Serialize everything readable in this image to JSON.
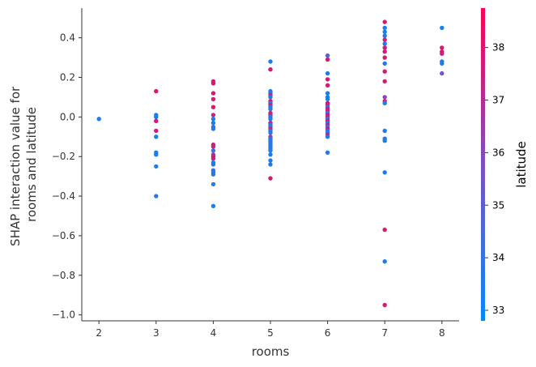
{
  "chart_data": {
    "type": "scatter",
    "title": "",
    "xlabel": "rooms",
    "ylabel_lines": [
      "SHAP interaction value for",
      "rooms and latitude"
    ],
    "xlim": [
      1.7,
      8.3
    ],
    "ylim": [
      -1.03,
      0.55
    ],
    "xticks": [
      2,
      3,
      4,
      5,
      6,
      7,
      8
    ],
    "xtick_labels": [
      "2",
      "3",
      "4",
      "5",
      "6",
      "7",
      "8"
    ],
    "yticks": [
      0.4,
      0.2,
      0.0,
      -0.2,
      -0.4,
      -0.6,
      -0.8,
      -1.0
    ],
    "ytick_labels": [
      "0.4",
      "0.2",
      "0.0",
      "−0.2",
      "−0.4",
      "−0.6",
      "−0.8",
      "−1.0"
    ],
    "grid": false,
    "colorbar": {
      "label": "latitude",
      "range": [
        32.8,
        38.75
      ],
      "ticks": [
        33,
        34,
        35,
        36,
        37,
        38
      ],
      "tick_labels": [
        "33",
        "34",
        "35",
        "36",
        "37",
        "38"
      ],
      "colors": [
        "#008afb",
        "#7d4fc0",
        "#ff0052"
      ]
    },
    "points": [
      [
        2,
        -0.01,
        33.5
      ],
      [
        3,
        0.13,
        38.0
      ],
      [
        3,
        0.01,
        33.5
      ],
      [
        3,
        0.0,
        33.3
      ],
      [
        3,
        -0.02,
        37.9
      ],
      [
        3,
        -0.07,
        37.8
      ],
      [
        3,
        -0.1,
        33.3
      ],
      [
        3,
        -0.18,
        33.4
      ],
      [
        3,
        -0.19,
        33.7
      ],
      [
        3,
        -0.25,
        33.6
      ],
      [
        3,
        -0.4,
        34.1
      ],
      [
        4,
        0.18,
        37.8
      ],
      [
        4,
        0.17,
        37.9
      ],
      [
        4,
        0.12,
        38.0
      ],
      [
        4,
        0.09,
        37.7
      ],
      [
        4,
        0.05,
        37.9
      ],
      [
        4,
        0.01,
        37.6
      ],
      [
        4,
        -0.01,
        33.4
      ],
      [
        4,
        -0.03,
        33.5
      ],
      [
        4,
        -0.05,
        34.0
      ],
      [
        4,
        -0.06,
        33.6
      ],
      [
        4,
        -0.14,
        37.8
      ],
      [
        4,
        -0.15,
        37.5
      ],
      [
        4,
        -0.17,
        34.0
      ],
      [
        4,
        -0.19,
        36.5
      ],
      [
        4,
        -0.2,
        37.8
      ],
      [
        4,
        -0.21,
        37.7
      ],
      [
        4,
        -0.23,
        33.5
      ],
      [
        4,
        -0.24,
        33.7
      ],
      [
        4,
        -0.27,
        34.3
      ],
      [
        4,
        -0.28,
        33.5
      ],
      [
        4,
        -0.29,
        33.8
      ],
      [
        4,
        -0.34,
        33.6
      ],
      [
        4,
        -0.45,
        33.4
      ],
      [
        5,
        0.28,
        33.3
      ],
      [
        5,
        0.24,
        37.8
      ],
      [
        5,
        0.13,
        33.4
      ],
      [
        5,
        0.12,
        33.7
      ],
      [
        5,
        0.11,
        37.7
      ],
      [
        5,
        0.1,
        33.5
      ],
      [
        5,
        0.08,
        38.0
      ],
      [
        5,
        0.07,
        33.6
      ],
      [
        5,
        0.06,
        37.9
      ],
      [
        5,
        0.05,
        33.5
      ],
      [
        5,
        0.04,
        33.8
      ],
      [
        5,
        0.02,
        37.8
      ],
      [
        5,
        0.01,
        37.6
      ],
      [
        5,
        0.0,
        33.4
      ],
      [
        5,
        -0.01,
        33.6
      ],
      [
        5,
        -0.03,
        37.7
      ],
      [
        5,
        -0.04,
        33.9
      ],
      [
        5,
        -0.05,
        33.5
      ],
      [
        5,
        -0.06,
        37.9
      ],
      [
        5,
        -0.07,
        34.0
      ],
      [
        5,
        -0.08,
        33.5
      ],
      [
        5,
        -0.1,
        36.8
      ],
      [
        5,
        -0.11,
        33.6
      ],
      [
        5,
        -0.12,
        33.4
      ],
      [
        5,
        -0.13,
        33.7
      ],
      [
        5,
        -0.14,
        33.5
      ],
      [
        5,
        -0.15,
        34.1
      ],
      [
        5,
        -0.16,
        33.4
      ],
      [
        5,
        -0.17,
        33.6
      ],
      [
        5,
        -0.19,
        33.5
      ],
      [
        5,
        -0.22,
        33.5
      ],
      [
        5,
        -0.24,
        33.7
      ],
      [
        5,
        -0.31,
        37.9
      ],
      [
        6,
        0.31,
        34.8
      ],
      [
        6,
        0.29,
        37.8
      ],
      [
        6,
        0.22,
        33.5
      ],
      [
        6,
        0.19,
        37.9
      ],
      [
        6,
        0.16,
        37.7
      ],
      [
        6,
        0.12,
        33.6
      ],
      [
        6,
        0.1,
        33.5
      ],
      [
        6,
        0.09,
        33.4
      ],
      [
        6,
        0.07,
        37.8
      ],
      [
        6,
        0.06,
        37.6
      ],
      [
        6,
        0.05,
        33.7
      ],
      [
        6,
        0.04,
        37.9
      ],
      [
        6,
        0.03,
        37.5
      ],
      [
        6,
        0.02,
        33.5
      ],
      [
        6,
        0.01,
        37.8
      ],
      [
        6,
        0.0,
        37.7
      ],
      [
        6,
        -0.01,
        33.6
      ],
      [
        6,
        -0.02,
        37.9
      ],
      [
        6,
        -0.03,
        33.4
      ],
      [
        6,
        -0.04,
        37.5
      ],
      [
        6,
        -0.05,
        33.8
      ],
      [
        6,
        -0.06,
        37.8
      ],
      [
        6,
        -0.07,
        33.5
      ],
      [
        6,
        -0.08,
        33.6
      ],
      [
        6,
        -0.09,
        37.7
      ],
      [
        6,
        -0.1,
        33.5
      ],
      [
        6,
        -0.18,
        33.6
      ],
      [
        7,
        0.48,
        37.9
      ],
      [
        7,
        0.45,
        33.5
      ],
      [
        7,
        0.43,
        33.4
      ],
      [
        7,
        0.41,
        33.6
      ],
      [
        7,
        0.39,
        37.8
      ],
      [
        7,
        0.37,
        33.5
      ],
      [
        7,
        0.35,
        37.9
      ],
      [
        7,
        0.33,
        37.7
      ],
      [
        7,
        0.3,
        37.8
      ],
      [
        7,
        0.27,
        33.5
      ],
      [
        7,
        0.23,
        37.8
      ],
      [
        7,
        0.18,
        37.7
      ],
      [
        7,
        0.1,
        36.2
      ],
      [
        7,
        0.08,
        37.6
      ],
      [
        7,
        0.07,
        33.4
      ],
      [
        7,
        -0.07,
        33.5
      ],
      [
        7,
        -0.11,
        33.6
      ],
      [
        7,
        -0.12,
        33.4
      ],
      [
        7,
        -0.28,
        33.5
      ],
      [
        7,
        -0.57,
        37.9
      ],
      [
        7,
        -0.73,
        33.6
      ],
      [
        7,
        -0.95,
        37.8
      ],
      [
        8,
        0.45,
        33.4
      ],
      [
        8,
        0.35,
        37.9
      ],
      [
        8,
        0.33,
        37.7
      ],
      [
        8,
        0.32,
        37.8
      ],
      [
        8,
        0.28,
        33.5
      ],
      [
        8,
        0.27,
        33.6
      ],
      [
        8,
        0.22,
        35.5
      ]
    ]
  }
}
